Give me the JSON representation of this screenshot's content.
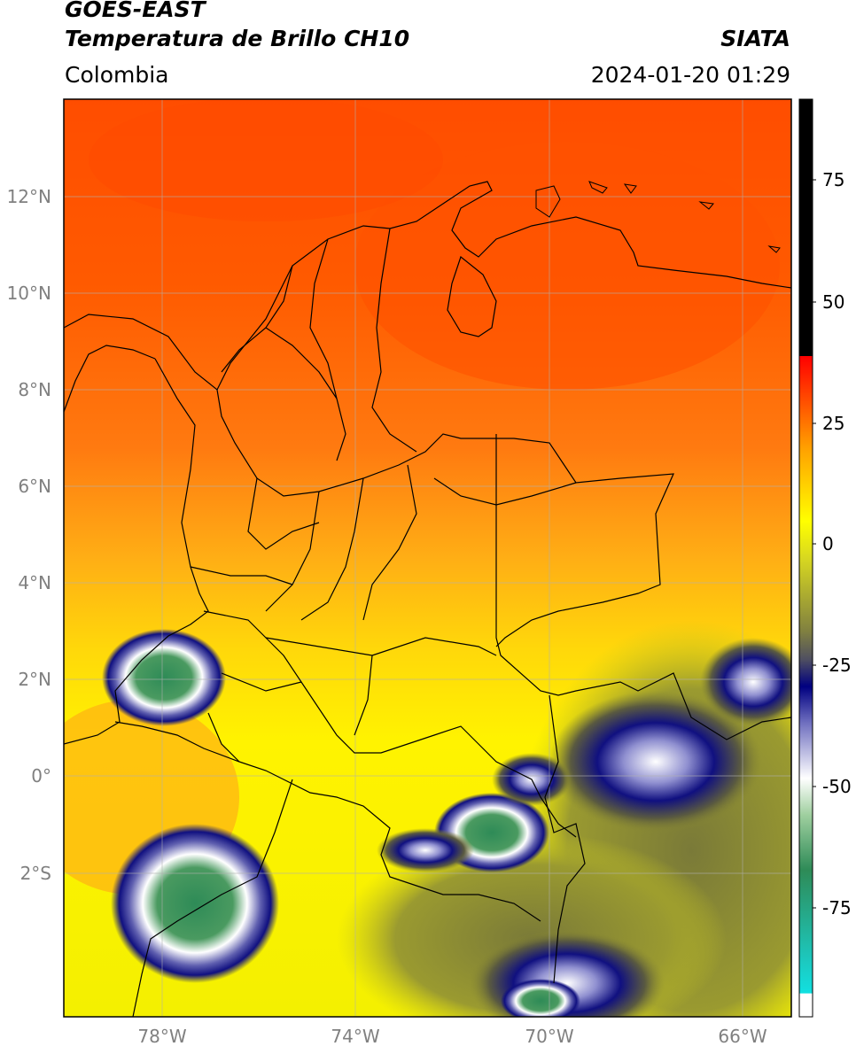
{
  "header": {
    "satellite": "GOES-EAST",
    "product": "Temperatura de Brillo CH10",
    "region": "Colombia",
    "agency": "SIATA",
    "datetime": "2024-01-20 01:29"
  },
  "map": {
    "lat_labels": [
      "12°N",
      "10°N",
      "8°N",
      "6°N",
      "4°N",
      "2°N",
      "0°",
      "2°S"
    ],
    "lon_labels": [
      "78°W",
      "74°W",
      "70°W",
      "66°W"
    ],
    "lat_range": [
      -5,
      14
    ],
    "lon_range": [
      -80,
      -65
    ]
  },
  "colorbar": {
    "ticks": [
      "75",
      "50",
      "25",
      "0",
      "-25",
      "-50",
      "-75"
    ],
    "range": [
      -95,
      90
    ],
    "colors": [
      "#ffffff",
      "#12e0e0",
      "#2e8b57",
      "#ffffff",
      "#000080",
      "#808040",
      "#ffff00",
      "#ff7f00",
      "#ff0000",
      "#000000"
    ]
  }
}
